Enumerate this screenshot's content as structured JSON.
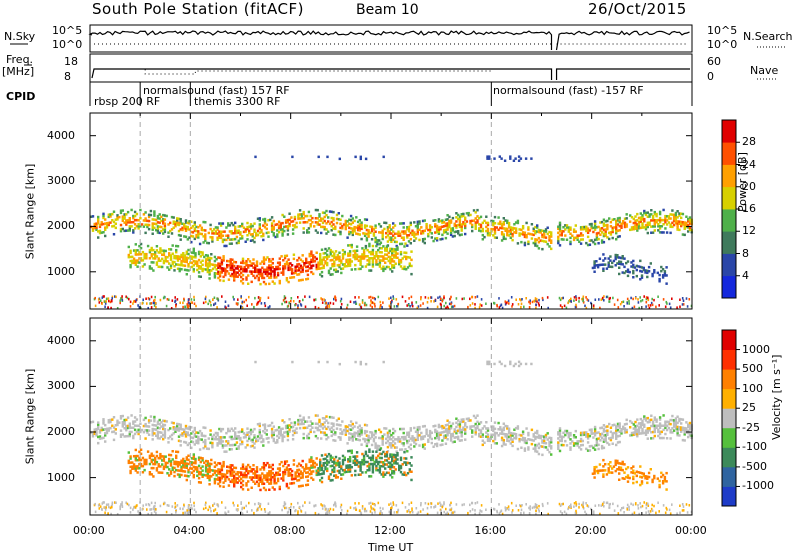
{
  "header": {
    "station": "South Pole Station (fitACF)",
    "beam": "Beam 10",
    "date": "26/Oct/2015"
  },
  "side_labels": {
    "nsky": "N.Sky",
    "nsearch": "N.Search",
    "freq": "Freq.",
    "mhz": "[MHz]",
    "nave": "Nave",
    "cpid": "CPID"
  },
  "top_panels": {
    "noise_ticks_left": [
      "10^5",
      "10^0"
    ],
    "noise_ticks_right": [
      "10^5",
      "10^0"
    ],
    "freq_ticks_left": [
      "18",
      "8"
    ],
    "nave_ticks_right": [
      "60",
      "0"
    ]
  },
  "cpid_labels": [
    {
      "text": "rbsp 200 RF",
      "hour": 0.2
    },
    {
      "text": "normalsound (fast) 157 RF",
      "hour": 2.0
    },
    {
      "text": "themis 3300 RF",
      "hour": 4.1
    },
    {
      "text": "normalsound (fast) -157 RF",
      "hour": 16.0
    }
  ],
  "mode_changes_hours": [
    2.0,
    4.0,
    16.0
  ],
  "chart_data": [
    {
      "type": "heatmap",
      "name": "power",
      "ylabel": "Slant Range [km]",
      "xlabel": "",
      "xlim": [
        0,
        24
      ],
      "ylim": [
        180,
        4500
      ],
      "yticks": [
        1000,
        2000,
        3000,
        4000
      ],
      "colorbar_label": "Power [dB]",
      "colorbar_ticks": [
        "28",
        "24",
        "20",
        "16",
        "12",
        "8",
        "4"
      ],
      "colors": [
        "#1428dc",
        "#2a46a8",
        "#3f7a5c",
        "#4fb04a",
        "#d7d000",
        "#ffa000",
        "#ff5000",
        "#e00000"
      ],
      "data_gap_hours": [
        18.4,
        18.6
      ]
    },
    {
      "type": "heatmap",
      "name": "velocity",
      "ylabel": "Slant Range [km]",
      "xlabel": "Time UT",
      "xlim": [
        0,
        24
      ],
      "ylim": [
        180,
        4500
      ],
      "yticks": [
        1000,
        2000,
        3000,
        4000
      ],
      "xticks": [
        "00:00",
        "04:00",
        "08:00",
        "12:00",
        "16:00",
        "20:00",
        "00:00"
      ],
      "colorbar_label": "Velocity [m s⁻¹]",
      "colorbar_ticks": [
        "1000",
        "500",
        "100",
        "25",
        "-25",
        "-100",
        "-500",
        "-1000"
      ],
      "colors": [
        "#1e3cc8",
        "#2f64a0",
        "#3c8a5a",
        "#55c03c",
        "#bebebe",
        "#ffb000",
        "#ff8000",
        "#ff3000",
        "#e00000"
      ],
      "data_gap_hours": [
        18.4,
        18.6
      ]
    }
  ]
}
